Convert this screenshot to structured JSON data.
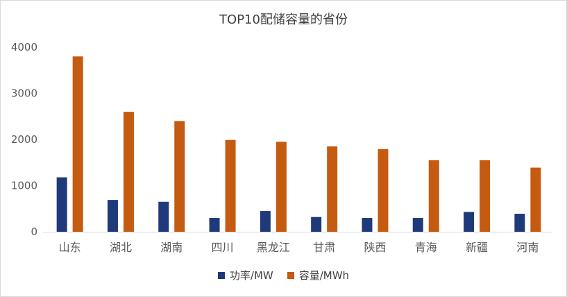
{
  "chart_data": {
    "type": "bar",
    "title": "TOP10配储容量的省份",
    "categories": [
      "山东",
      "湖北",
      "湖南",
      "四川",
      "黑龙江",
      "甘肃",
      "陕西",
      "青海",
      "新疆",
      "河南"
    ],
    "series": [
      {
        "name": "功率/MW",
        "color": "#1f3a7a",
        "values": [
          1180,
          690,
          650,
          300,
          450,
          320,
          300,
          300,
          430,
          390
        ]
      },
      {
        "name": "容量/MWh",
        "color": "#c55a11",
        "values": [
          3800,
          2600,
          2400,
          1990,
          1950,
          1850,
          1790,
          1550,
          1550,
          1390
        ]
      }
    ],
    "yticks": [
      0,
      1000,
      2000,
      3000,
      4000
    ],
    "ylim": [
      0,
      4000
    ],
    "grid": false,
    "legend_position": "bottom"
  }
}
